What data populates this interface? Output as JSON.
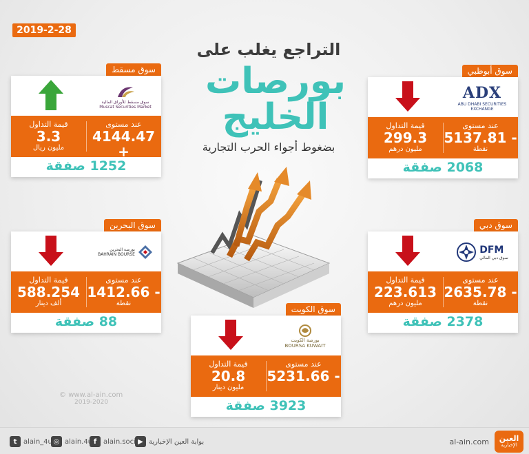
{
  "date": "2019-2-28",
  "headline": {
    "line1": "التراجع يغلب على",
    "line2": "بورصات",
    "line3": "الخليج",
    "line4": "بضغوط أجواء الحرب التجارية"
  },
  "labels": {
    "level": "عند مستوى",
    "volume": "قيمة التداول",
    "points": "نقطة"
  },
  "markets": {
    "muscat": {
      "name": "سوق مسقط",
      "logo_text": "Muscat Securities Market",
      "logo_ar": "سوق مسقط للأوراق المالية",
      "level": "4144.47 +",
      "volume": "3.3",
      "volume_unit": "مليون ريال",
      "deals": "1252 صفقة",
      "direction": "up"
    },
    "abudhabi": {
      "name": "سوق أبوظبي",
      "logo_text": "ADX",
      "logo_sub": "ABU DHABI SECURITIES EXCHANGE",
      "level": "5137.81 -",
      "volume": "299.3",
      "volume_unit": "مليون درهم",
      "deals": "2068 صفقة",
      "direction": "down"
    },
    "bahrain": {
      "name": "سوق البحرين",
      "logo_text": "BAHRAIN BOURSE",
      "logo_ar": "بورصة البحرين",
      "level": "1412.66 -",
      "volume": "588.254",
      "volume_unit": "ألف دينار",
      "deals": "88 صفقة",
      "direction": "down"
    },
    "dubai": {
      "name": "سوق دبي",
      "logo_text": "DFM",
      "logo_ar": "سوق دبي المالي",
      "level": "2635.78 -",
      "volume": "223.613",
      "volume_unit": "مليون درهم",
      "deals": "2378 صفقة",
      "direction": "down"
    },
    "kuwait": {
      "name": "سوق الكويت",
      "logo_text": "BOURSA KUWAIT",
      "logo_ar": "بورصة الكويت",
      "level": "5231.66 -",
      "volume": "20.8",
      "volume_unit": "مليون دينار",
      "deals": "3923 صفقة",
      "direction": "down"
    }
  },
  "watermark": {
    "site": "www.al-ain.com",
    "years": "2019-2020"
  },
  "footer": {
    "twitter": "alain_4u",
    "instagram": "alain.4u",
    "facebook": "alain.social",
    "youtube": "بوابة العين الإخبارية",
    "site": "al-ain.com",
    "brand": "العين",
    "brand_sub": "الإخبارية"
  },
  "colors": {
    "accent": "#ea6a10",
    "teal": "#3fc2b8",
    "up": "#3aa63a",
    "down": "#c8101a"
  }
}
